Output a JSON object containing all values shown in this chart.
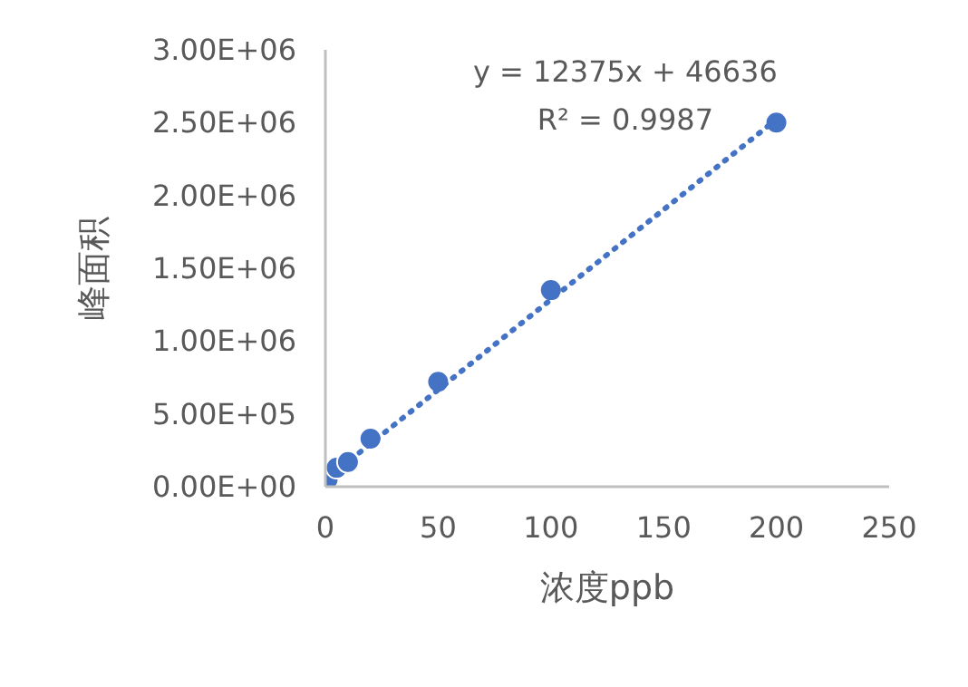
{
  "chart_data": {
    "type": "scatter",
    "xlabel": "浓度ppb",
    "ylabel": "峰面积",
    "xlim": [
      0,
      250
    ],
    "xticks": [
      0,
      50,
      100,
      150,
      200,
      250
    ],
    "ylim": [
      0,
      3000000
    ],
    "yticks": [
      {
        "value": 0,
        "label": "0.00E+00"
      },
      {
        "value": 500000,
        "label": "5.00E+05"
      },
      {
        "value": 1000000,
        "label": "1.00E+06"
      },
      {
        "value": 1500000,
        "label": "1.50E+06"
      },
      {
        "value": 2000000,
        "label": "2.00E+06"
      },
      {
        "value": 2500000,
        "label": "2.50E+06"
      },
      {
        "value": 3000000,
        "label": "3.00E+06"
      }
    ],
    "grid": false,
    "series": [
      {
        "color": "#4472c4",
        "marker": "circle",
        "x": [
          1,
          5,
          10,
          20,
          50,
          100,
          200
        ],
        "values": [
          50000,
          130000,
          170000,
          330000,
          720000,
          1350000,
          2500000
        ]
      },
      {
        "type": "line",
        "color": "#4472c4",
        "line_style": "dotted",
        "x": [
          0,
          200
        ],
        "values": [
          47000,
          2522000
        ]
      }
    ],
    "annotations": [
      "y = 12375x + 46636",
      "R² = 0.9987"
    ]
  }
}
